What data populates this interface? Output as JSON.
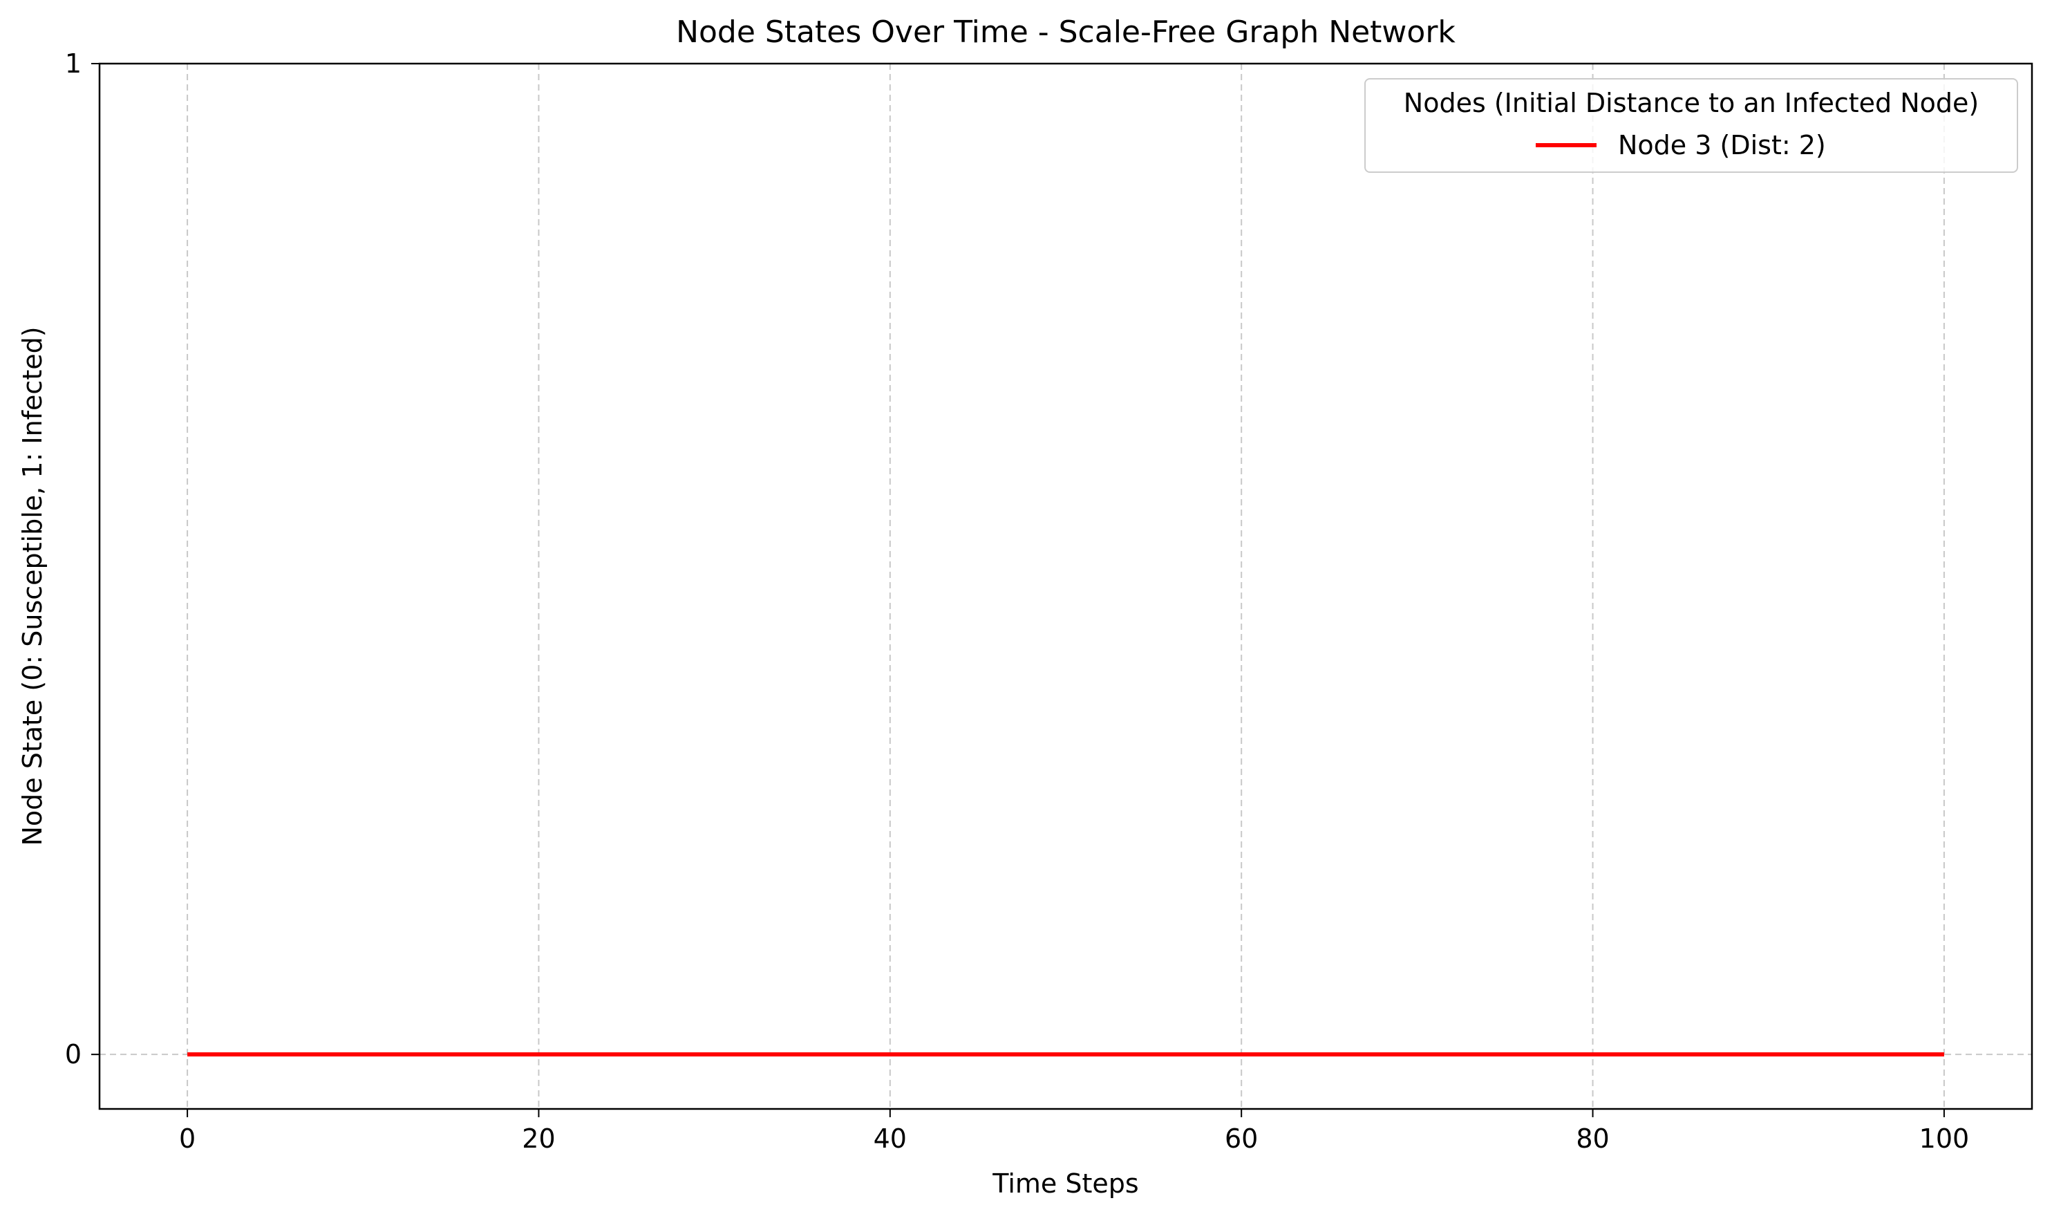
{
  "chart_data": {
    "type": "line",
    "title": "Node States Over Time - Scale-Free Graph Network",
    "xlabel": "Time Steps",
    "ylabel": "Node State (0: Susceptible, 1: Infected)",
    "xlim": [
      -5,
      105
    ],
    "ylim": [
      -0.055,
      1.0
    ],
    "x_ticks": [
      0,
      20,
      40,
      60,
      80,
      100
    ],
    "y_ticks": [
      0,
      1
    ],
    "grid": true,
    "grid_style": "dashed",
    "legend": {
      "title": "Nodes (Initial Distance to an Infected Node)",
      "placement": "top-right"
    },
    "series": [
      {
        "name": "Node 3 (Dist: 2)",
        "color": "#ff0000",
        "x": [
          0,
          100
        ],
        "y": [
          0,
          0
        ]
      }
    ]
  }
}
